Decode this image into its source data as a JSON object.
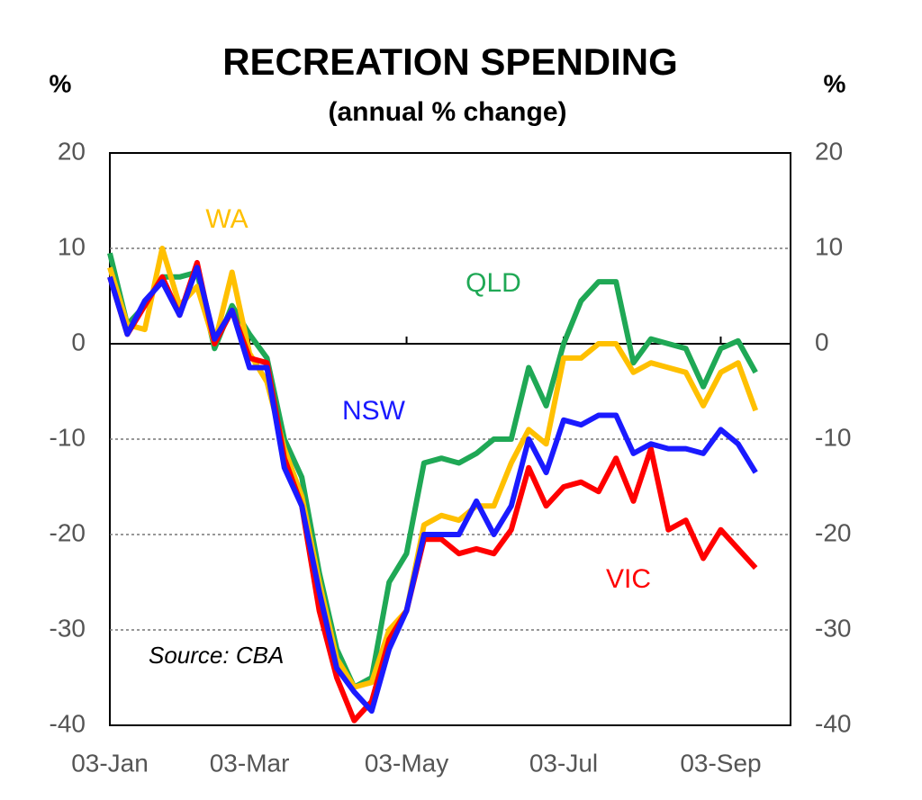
{
  "chart_data": {
    "type": "line",
    "title": "RECREATION SPENDING",
    "subtitle": "(annual % change)",
    "ylabel": "%",
    "y2label": "%",
    "annotation": "Source: CBA",
    "categories": [
      "03-Jan",
      null,
      null,
      null,
      null,
      null,
      null,
      null,
      "03-Mar",
      null,
      null,
      null,
      null,
      null,
      null,
      null,
      null,
      "03-May",
      null,
      null,
      null,
      null,
      null,
      null,
      null,
      null,
      "03-Jul",
      null,
      null,
      null,
      null,
      null,
      null,
      null,
      null,
      "03-Sep",
      null,
      null
    ],
    "series": [
      {
        "name": "QLD",
        "color": "#1fa855",
        "values": [
          9.5,
          2,
          4,
          7,
          7,
          7.5,
          -0.5,
          4,
          1,
          -1.5,
          -10,
          -14,
          -24,
          -32,
          -36,
          -35,
          -25,
          -22,
          -12.5,
          -12,
          -12.5,
          -11.5,
          -10,
          -10,
          -2.5,
          -6.5,
          0,
          4.5,
          6.5,
          6.5,
          -2,
          0.5,
          0,
          -0.5,
          -4.5,
          -0.5,
          0.3,
          -3
        ]
      },
      {
        "name": "WA",
        "color": "#ffc000",
        "values": [
          8,
          2,
          1.5,
          10,
          4,
          6,
          0,
          7.5,
          -1,
          -4,
          -11,
          -16,
          -25,
          -33,
          -36,
          -35.5,
          -30,
          -28,
          -19,
          -18,
          -18.5,
          -17,
          -17,
          -12.5,
          -9,
          -10.5,
          -1.5,
          -1.5,
          0,
          0,
          -3,
          -2,
          -2.5,
          -3,
          -6.5,
          -3,
          -2,
          -7
        ]
      },
      {
        "name": "VIC",
        "color": "#ff0000",
        "values": [
          7,
          1,
          4,
          7,
          3,
          8.5,
          0,
          3.5,
          -1.5,
          -2,
          -12,
          -17,
          -28,
          -35,
          -39.5,
          -37.5,
          -31,
          -28,
          -20.5,
          -20.5,
          -22,
          -21.5,
          -22,
          -19.5,
          -13,
          -17,
          -15,
          -14.5,
          -15.5,
          -12,
          -16.5,
          -11,
          -19.5,
          -18.5,
          -22.5,
          -19.5,
          -21.5,
          -23.5
        ]
      },
      {
        "name": "NSW",
        "color": "#1a1aff",
        "values": [
          7,
          1,
          4.5,
          6.5,
          3,
          8,
          0.5,
          3.5,
          -2.5,
          -2.5,
          -13,
          -17,
          -26,
          -34,
          -36.5,
          -38.5,
          -32,
          -28,
          -20,
          -20,
          -20,
          -16.5,
          -20,
          -17,
          -10,
          -13.5,
          -8,
          -8.5,
          -7.5,
          -7.5,
          -11.5,
          -10.5,
          -11,
          -11,
          -11.5,
          -9,
          -10.5,
          -13.5
        ]
      }
    ],
    "ylim": [
      -40,
      20
    ],
    "yticks": [
      -40,
      -30,
      -20,
      -10,
      0,
      10,
      20
    ],
    "y2lim": [
      -40,
      20
    ],
    "y2ticks": [
      -40,
      -30,
      -20,
      -10,
      0,
      10,
      20
    ],
    "grid": true
  }
}
